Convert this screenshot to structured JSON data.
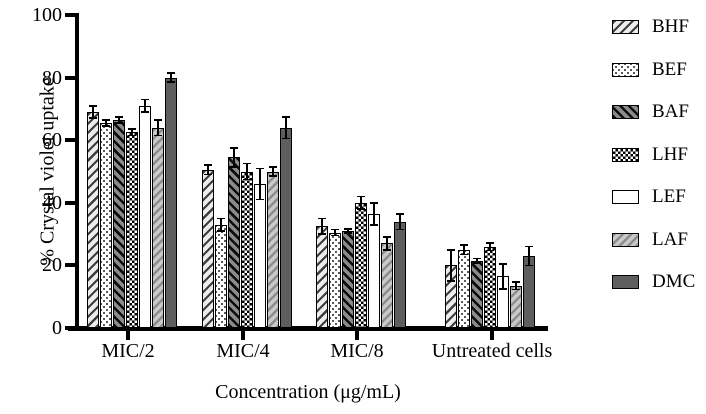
{
  "chart_data": {
    "type": "bar",
    "title": "",
    "xlabel": "Concentration (μg/mL)",
    "ylabel": "% Crystal violet uptake",
    "ylim": [
      0,
      100
    ],
    "yticks": [
      0,
      20,
      40,
      60,
      80,
      100
    ],
    "grid": false,
    "legend_position": "right",
    "categories": [
      "MIC/2",
      "MIC/4",
      "MIC/8",
      "Untreated cells"
    ],
    "series": [
      {
        "name": "BHF",
        "pattern": "diagonal-light",
        "values": [
          69,
          50.5,
          32.5,
          20
        ],
        "errors": [
          2,
          1.5,
          2.5,
          5
        ]
      },
      {
        "name": "BEF",
        "pattern": "dots",
        "values": [
          65.5,
          33,
          30.5,
          25
        ],
        "errors": [
          1,
          2,
          1,
          1.5
        ]
      },
      {
        "name": "BAF",
        "pattern": "diagonal-dark",
        "values": [
          66.5,
          54.5,
          31,
          21.5
        ],
        "errors": [
          1,
          3,
          0.7,
          0.7
        ]
      },
      {
        "name": "LHF",
        "pattern": "checker",
        "values": [
          62.5,
          50,
          40,
          26
        ],
        "errors": [
          1,
          2.5,
          2,
          1.2
        ]
      },
      {
        "name": "LEF",
        "pattern": "white",
        "values": [
          71,
          46,
          36.5,
          16.5
        ],
        "errors": [
          2,
          5,
          3.5,
          4
        ]
      },
      {
        "name": "LAF",
        "pattern": "diagonal-gray",
        "values": [
          64,
          50,
          27,
          13.5
        ],
        "errors": [
          2.5,
          1.5,
          2,
          1.2
        ]
      },
      {
        "name": "DMC",
        "pattern": "solid-gray",
        "values": [
          80,
          64,
          34,
          23
        ],
        "errors": [
          1.5,
          3.5,
          2.5,
          3
        ]
      }
    ],
    "colors": {
      "ink": "#000000",
      "background": "#ffffff",
      "solid_bar": "#5e5e5e"
    }
  }
}
